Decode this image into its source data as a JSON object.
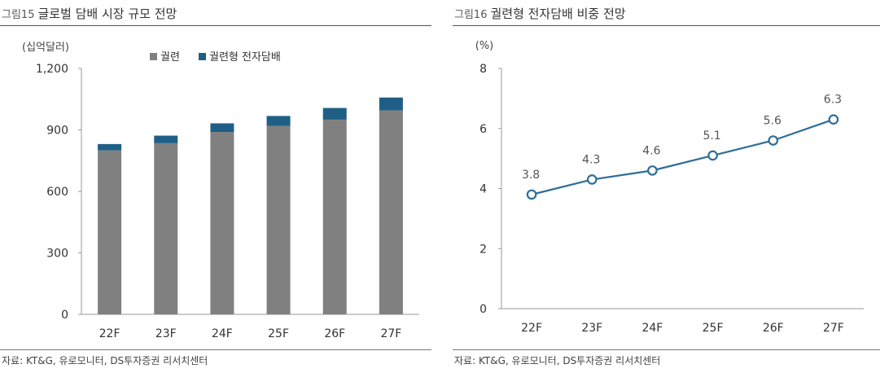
{
  "charts": [
    {
      "figure_label": "그림15",
      "title": "글로벌 담배 시장 규모 전망",
      "source": "자료: KT&G, 유로모니터, DS투자증권 리서치센터"
    },
    {
      "figure_label": "그림16",
      "title": "궐련형 전자담배 비중 전망",
      "source": "자료: KT&G, 유로모니터, DS투자증권 리서치센터"
    }
  ],
  "colors": {
    "gray": "#808080",
    "blue": "#1f5f85",
    "line": "#2e6e96",
    "axis": "#999999"
  },
  "chart_data": [
    {
      "type": "bar",
      "stacked": true,
      "title": "글로벌 담배 시장 규모 전망",
      "unit_label": "(십억달러)",
      "categories": [
        "22F",
        "23F",
        "24F",
        "25F",
        "26F",
        "27F"
      ],
      "series": [
        {
          "name": "궐련",
          "values": [
            800,
            835,
            890,
            920,
            950,
            995
          ]
        },
        {
          "name": "궐련형 전자담배",
          "values": [
            31,
            37,
            42,
            48,
            57,
            63
          ]
        }
      ],
      "ylim": [
        0,
        1200
      ],
      "yticks": [
        "0",
        "300",
        "600",
        "900",
        "1,200"
      ],
      "legend": "top-center"
    },
    {
      "type": "line",
      "title": "궐련형 전자담배 비중 전망",
      "unit_label": "(%)",
      "categories": [
        "22F",
        "23F",
        "24F",
        "25F",
        "26F",
        "27F"
      ],
      "values": [
        3.8,
        4.3,
        4.6,
        5.1,
        5.6,
        6.3
      ],
      "labels": [
        "3.8",
        "4.3",
        "4.6",
        "5.1",
        "5.6",
        "6.3"
      ],
      "ylim": [
        0,
        8
      ],
      "yticks": [
        "0",
        "2",
        "4",
        "6",
        "8"
      ]
    }
  ]
}
